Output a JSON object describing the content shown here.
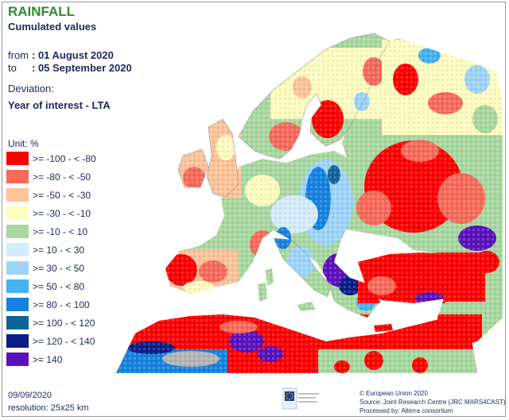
{
  "header": {
    "title": "RAINFALL",
    "subtitle": "Cumulated values"
  },
  "period": {
    "from_label": "from",
    "from_value": ": 01 August 2020",
    "to_label": "to",
    "to_value": ": 05 September 2020"
  },
  "deviation": {
    "label": "Deviation:",
    "value": "Year of interest - LTA"
  },
  "legend": {
    "unit_label": "Unit:  %",
    "items": [
      {
        "label": ">= -100 - < -80",
        "color": "#ff0000"
      },
      {
        "label": ">= -80 - < -50",
        "color": "#f86a5a"
      },
      {
        "label": ">= -50 - < -30",
        "color": "#fcc49a"
      },
      {
        "label": ">= -30 - < -10",
        "color": "#fefdc0"
      },
      {
        "label": ">= -10 - < 10",
        "color": "#a8d8a0"
      },
      {
        "label": ">= 10 - < 30",
        "color": "#d4edfc"
      },
      {
        "label": ">= 30 - < 50",
        "color": "#9ed4fa"
      },
      {
        "label": ">= 50 - < 80",
        "color": "#44b2f4"
      },
      {
        "label": ">= 80 - < 100",
        "color": "#1682e0"
      },
      {
        "label": ">= 100 - < 120",
        "color": "#106494"
      },
      {
        "label": ">= 120 - < 140",
        "color": "#0c1c88"
      },
      {
        "label": ">= 140",
        "color": "#5a12bc"
      }
    ]
  },
  "footer": {
    "date": "09/09/2020",
    "resolution": "resolution: 25x25 km",
    "credit_line1": "© European Union 2020",
    "credit_line2": "Source: Joint Research Centre (JRC MARS4CAST)",
    "credit_line3": "Processed by: Alterra consortium"
  },
  "map_colors": {
    "sea": "#ffffff",
    "no_data": "#b4b4b4"
  }
}
